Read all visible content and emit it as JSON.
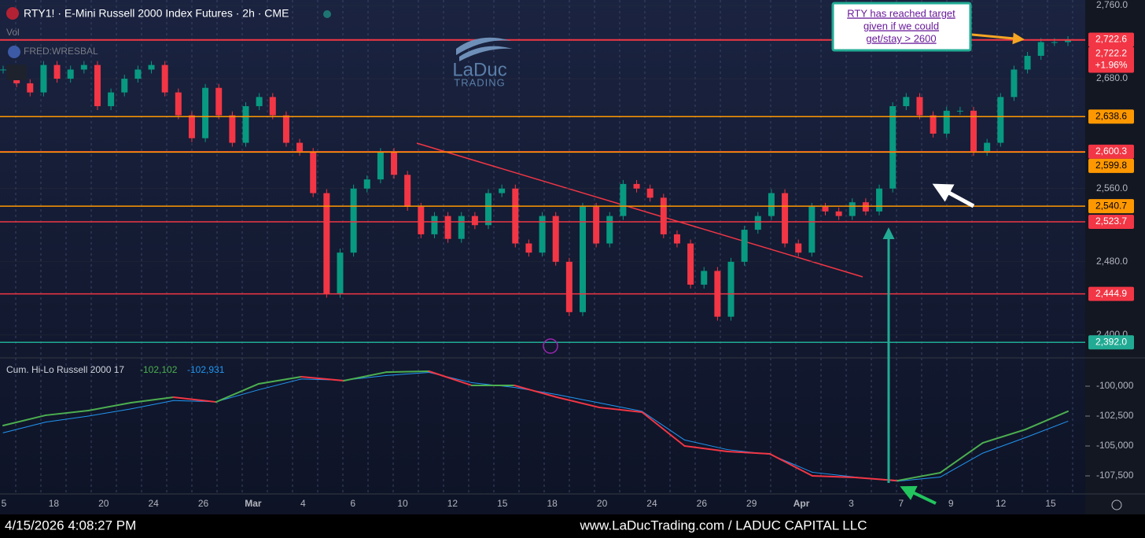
{
  "header": {
    "title": "RTY1! · E-Mini Russell 2000 Index Futures · 2h · CME",
    "volume": "Vol",
    "overlay": "FRED:WRESBAL",
    "logo": "LaDuc",
    "logo_sub": "TRADING"
  },
  "annotation": {
    "lines": [
      "RTY has reached target",
      "given if we could",
      "get/stay > 2600"
    ]
  },
  "footer": {
    "timestamp": "4/15/2026 4:08:27 PM",
    "site": "www.LaDucTrading.com / LADUC CAPITAL LLC"
  },
  "chart_data": [
    {
      "type": "candlestick",
      "values": [
        2690,
        2675,
        2665,
        2695,
        2680,
        2690,
        2695,
        2650,
        2665,
        2680,
        2690,
        2695,
        2665,
        2640,
        2615,
        2670,
        2640,
        2610,
        2650,
        2660,
        2640,
        2610,
        2600,
        2555,
        2445,
        2490,
        2560,
        2570,
        2600,
        2575,
        2540,
        2510,
        2530,
        2505,
        2530,
        2520,
        2555,
        2560,
        2500,
        2490,
        2530,
        2480,
        2425,
        2540,
        2500,
        2530,
        2565,
        2560,
        2550,
        2510,
        2500,
        2455,
        2470,
        2420,
        2480,
        2515,
        2530,
        2555,
        2500,
        2490,
        2540,
        2535,
        2530,
        2545,
        2535,
        2560,
        2650,
        2660,
        2640,
        2620,
        2645,
        2645,
        2600,
        2610,
        2660,
        2690,
        2705,
        2720,
        2720,
        2722.2
      ],
      "up_color": "#089981",
      "down_color": "#f23645",
      "ylim": [
        2375,
        2766
      ],
      "yticks": [
        {
          "value": 2760,
          "label": "2,760.0"
        },
        {
          "value": 2680,
          "label": "2,680.0"
        },
        {
          "value": 2560,
          "label": "2,560.0"
        },
        {
          "value": 2480,
          "label": "2,480.0"
        },
        {
          "value": 2400,
          "label": "2,400.0"
        }
      ],
      "levels": [
        {
          "value": 2722.6,
          "label": "2,722.6",
          "color": "#f23645"
        },
        {
          "value": 2722.2,
          "label": "2,722.2",
          "change": "+1.96%",
          "color": "#f23645"
        },
        {
          "value": 2638.6,
          "label": "2,638.6",
          "color": "#ff9800"
        },
        {
          "value": 2600.3,
          "label": "2,600.3",
          "color": "#f23645"
        },
        {
          "value": 2599.8,
          "label": "2,599.8",
          "color": "#ff9800"
        },
        {
          "value": 2540.7,
          "label": "2,540.7",
          "color": "#ff9800"
        },
        {
          "value": 2523.7,
          "label": "2,523.7",
          "color": "#f23645"
        },
        {
          "value": 2444.9,
          "label": "2,444.9",
          "color": "#f23645"
        },
        {
          "value": 2392.0,
          "label": "2,392.0",
          "color": "#22ab94"
        }
      ]
    },
    {
      "type": "line",
      "title": "Cum. Hi-Lo Russell 2000 17",
      "series": [
        {
          "color": "#4caf50",
          "down_color": "#f23645",
          "value_label": "-102,102",
          "values": [
            -103290,
            -102430,
            -102040,
            -101380,
            -100920,
            -101320,
            -99800,
            -99210,
            -99540,
            -98820,
            -98750,
            -99930,
            -99930,
            -100920,
            -101780,
            -102170,
            -105000,
            -105460,
            -105660,
            -107500,
            -107630,
            -107900,
            -107240,
            -104740,
            -103620,
            -102102
          ]
        },
        {
          "color": "#2196f3",
          "value_label": "-102,931",
          "values": [
            -103900,
            -103000,
            -102500,
            -101900,
            -101200,
            -101300,
            -100300,
            -99400,
            -99500,
            -99100,
            -98850,
            -99700,
            -100100,
            -100700,
            -101400,
            -102100,
            -104500,
            -105300,
            -105700,
            -107200,
            -107600,
            -107950,
            -107600,
            -105600,
            -104300,
            -102931
          ]
        }
      ],
      "ylim": [
        -108816,
        -97960
      ],
      "yticks": [
        {
          "value": -100000,
          "label": "-100,000"
        },
        {
          "value": -102500,
          "label": "-102,500"
        },
        {
          "value": -105000,
          "label": "-105,000"
        },
        {
          "value": -107500,
          "label": "-107,500"
        }
      ],
      "xticks": [
        "5",
        "18",
        "20",
        "24",
        "26",
        "Mar",
        "4",
        "6",
        "10",
        "12",
        "15",
        "18",
        "20",
        "24",
        "26",
        "29",
        "Apr",
        "3",
        "7",
        "9",
        "12",
        "15"
      ]
    }
  ]
}
